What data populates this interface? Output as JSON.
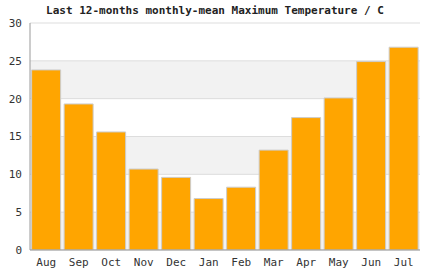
{
  "chart_data": {
    "type": "bar",
    "title": "Last 12-months monthly-mean Maximum Temperature / C",
    "categories": [
      "Aug",
      "Sep",
      "Oct",
      "Nov",
      "Dec",
      "Jan",
      "Feb",
      "Mar",
      "Apr",
      "May",
      "Jun",
      "Jul"
    ],
    "values": [
      23.8,
      19.3,
      15.6,
      10.7,
      9.6,
      6.8,
      8.3,
      13.2,
      17.5,
      20.1,
      24.9,
      26.8
    ],
    "color": "#ffa500",
    "ylim": [
      0,
      30
    ],
    "yticks": [
      0,
      5,
      10,
      15,
      20,
      25,
      30
    ],
    "grid": true
  }
}
